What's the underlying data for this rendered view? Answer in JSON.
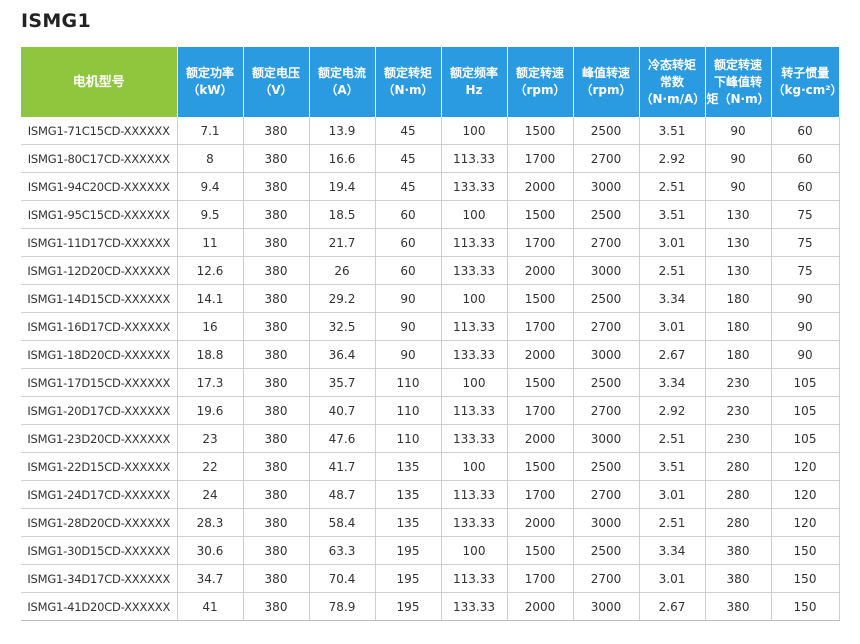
{
  "title": "ISMG1",
  "table": {
    "headers": [
      {
        "lines": [
          "电机型号"
        ]
      },
      {
        "lines": [
          "额定功率",
          "（kW）"
        ]
      },
      {
        "lines": [
          "额定电压",
          "（V）"
        ]
      },
      {
        "lines": [
          "额定电流",
          "（A）"
        ]
      },
      {
        "lines": [
          "额定转矩",
          "（N·m）"
        ]
      },
      {
        "lines": [
          "额定频率",
          "Hz"
        ]
      },
      {
        "lines": [
          "额定转速",
          "（rpm）"
        ]
      },
      {
        "lines": [
          "峰值转速",
          "（rpm）"
        ]
      },
      {
        "lines": [
          "冷态转矩",
          "常数",
          "（N·m/A）"
        ]
      },
      {
        "lines": [
          "额定转速",
          "下峰值转",
          "矩（N·m）"
        ]
      },
      {
        "lines": [
          "转子惯量",
          "（kg·cm²）"
        ]
      }
    ],
    "rows": [
      [
        "ISMG1-71C15CD-XXXXXX",
        "7.1",
        "380",
        "13.9",
        "45",
        "100",
        "1500",
        "2500",
        "3.51",
        "90",
        "60"
      ],
      [
        "ISMG1-80C17CD-XXXXXX",
        "8",
        "380",
        "16.6",
        "45",
        "113.33",
        "1700",
        "2700",
        "2.92",
        "90",
        "60"
      ],
      [
        "ISMG1-94C20CD-XXXXXX",
        "9.4",
        "380",
        "19.4",
        "45",
        "133.33",
        "2000",
        "3000",
        "2.51",
        "90",
        "60"
      ],
      [
        "ISMG1-95C15CD-XXXXXX",
        "9.5",
        "380",
        "18.5",
        "60",
        "100",
        "1500",
        "2500",
        "3.51",
        "130",
        "75"
      ],
      [
        "ISMG1-11D17CD-XXXXXX",
        "11",
        "380",
        "21.7",
        "60",
        "113.33",
        "1700",
        "2700",
        "3.01",
        "130",
        "75"
      ],
      [
        "ISMG1-12D20CD-XXXXXX",
        "12.6",
        "380",
        "26",
        "60",
        "133.33",
        "2000",
        "3000",
        "2.51",
        "130",
        "75"
      ],
      [
        "ISMG1-14D15CD-XXXXXX",
        "14.1",
        "380",
        "29.2",
        "90",
        "100",
        "1500",
        "2500",
        "3.34",
        "180",
        "90"
      ],
      [
        "ISMG1-16D17CD-XXXXXX",
        "16",
        "380",
        "32.5",
        "90",
        "113.33",
        "1700",
        "2700",
        "3.01",
        "180",
        "90"
      ],
      [
        "ISMG1-18D20CD-XXXXXX",
        "18.8",
        "380",
        "36.4",
        "90",
        "133.33",
        "2000",
        "3000",
        "2.67",
        "180",
        "90"
      ],
      [
        "ISMG1-17D15CD-XXXXXX",
        "17.3",
        "380",
        "35.7",
        "110",
        "100",
        "1500",
        "2500",
        "3.34",
        "230",
        "105"
      ],
      [
        "ISMG1-20D17CD-XXXXXX",
        "19.6",
        "380",
        "40.7",
        "110",
        "113.33",
        "1700",
        "2700",
        "2.92",
        "230",
        "105"
      ],
      [
        "ISMG1-23D20CD-XXXXXX",
        "23",
        "380",
        "47.6",
        "110",
        "133.33",
        "2000",
        "3000",
        "2.51",
        "230",
        "105"
      ],
      [
        "ISMG1-22D15CD-XXXXXX",
        "22",
        "380",
        "41.7",
        "135",
        "100",
        "1500",
        "2500",
        "3.51",
        "280",
        "120"
      ],
      [
        "ISMG1-24D17CD-XXXXXX",
        "24",
        "380",
        "48.7",
        "135",
        "113.33",
        "1700",
        "2700",
        "3.01",
        "280",
        "120"
      ],
      [
        "ISMG1-28D20CD-XXXXXX",
        "28.3",
        "380",
        "58.4",
        "135",
        "133.33",
        "2000",
        "3000",
        "2.51",
        "280",
        "120"
      ],
      [
        "ISMG1-30D15CD-XXXXXX",
        "30.6",
        "380",
        "63.3",
        "195",
        "100",
        "1500",
        "2500",
        "3.34",
        "380",
        "150"
      ],
      [
        "ISMG1-34D17CD-XXXXXX",
        "34.7",
        "380",
        "70.4",
        "195",
        "113.33",
        "1700",
        "2700",
        "3.01",
        "380",
        "150"
      ],
      [
        "ISMG1-41D20CD-XXXXXX",
        "41",
        "380",
        "78.9",
        "195",
        "133.33",
        "2000",
        "3000",
        "2.67",
        "380",
        "150"
      ]
    ]
  }
}
